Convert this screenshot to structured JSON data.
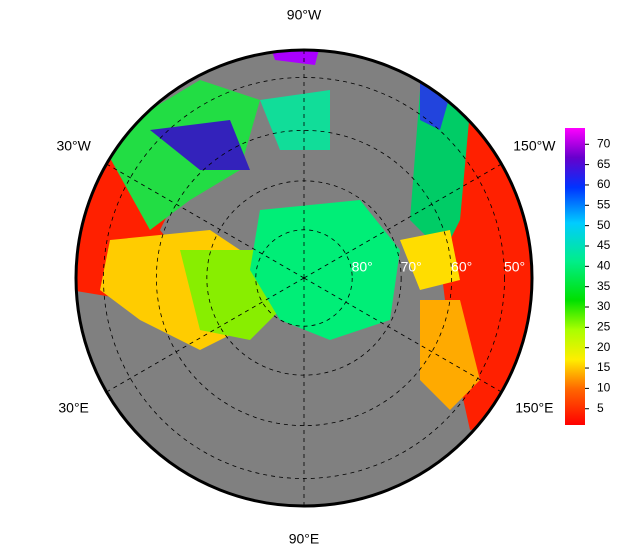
{
  "map": {
    "lon_labels": [
      {
        "value": -90,
        "label": "90°W"
      },
      {
        "value": -30,
        "label": "30°W"
      },
      {
        "value": -150,
        "label": "150°W"
      },
      {
        "value": 30,
        "label": "30°E"
      },
      {
        "value": 150,
        "label": "150°E"
      },
      {
        "value": 90,
        "label": "90°E"
      }
    ],
    "lat_labels": [
      {
        "value": 80,
        "label": "80°"
      },
      {
        "value": 70,
        "label": "70°"
      },
      {
        "value": 60,
        "label": "60°"
      },
      {
        "value": 50,
        "label": "50°"
      }
    ]
  },
  "colorbar": {
    "lim": [
      1,
      74
    ],
    "ticks": [
      5,
      10,
      15,
      20,
      25,
      30,
      35,
      40,
      45,
      50,
      55,
      60,
      65,
      70
    ]
  }
}
